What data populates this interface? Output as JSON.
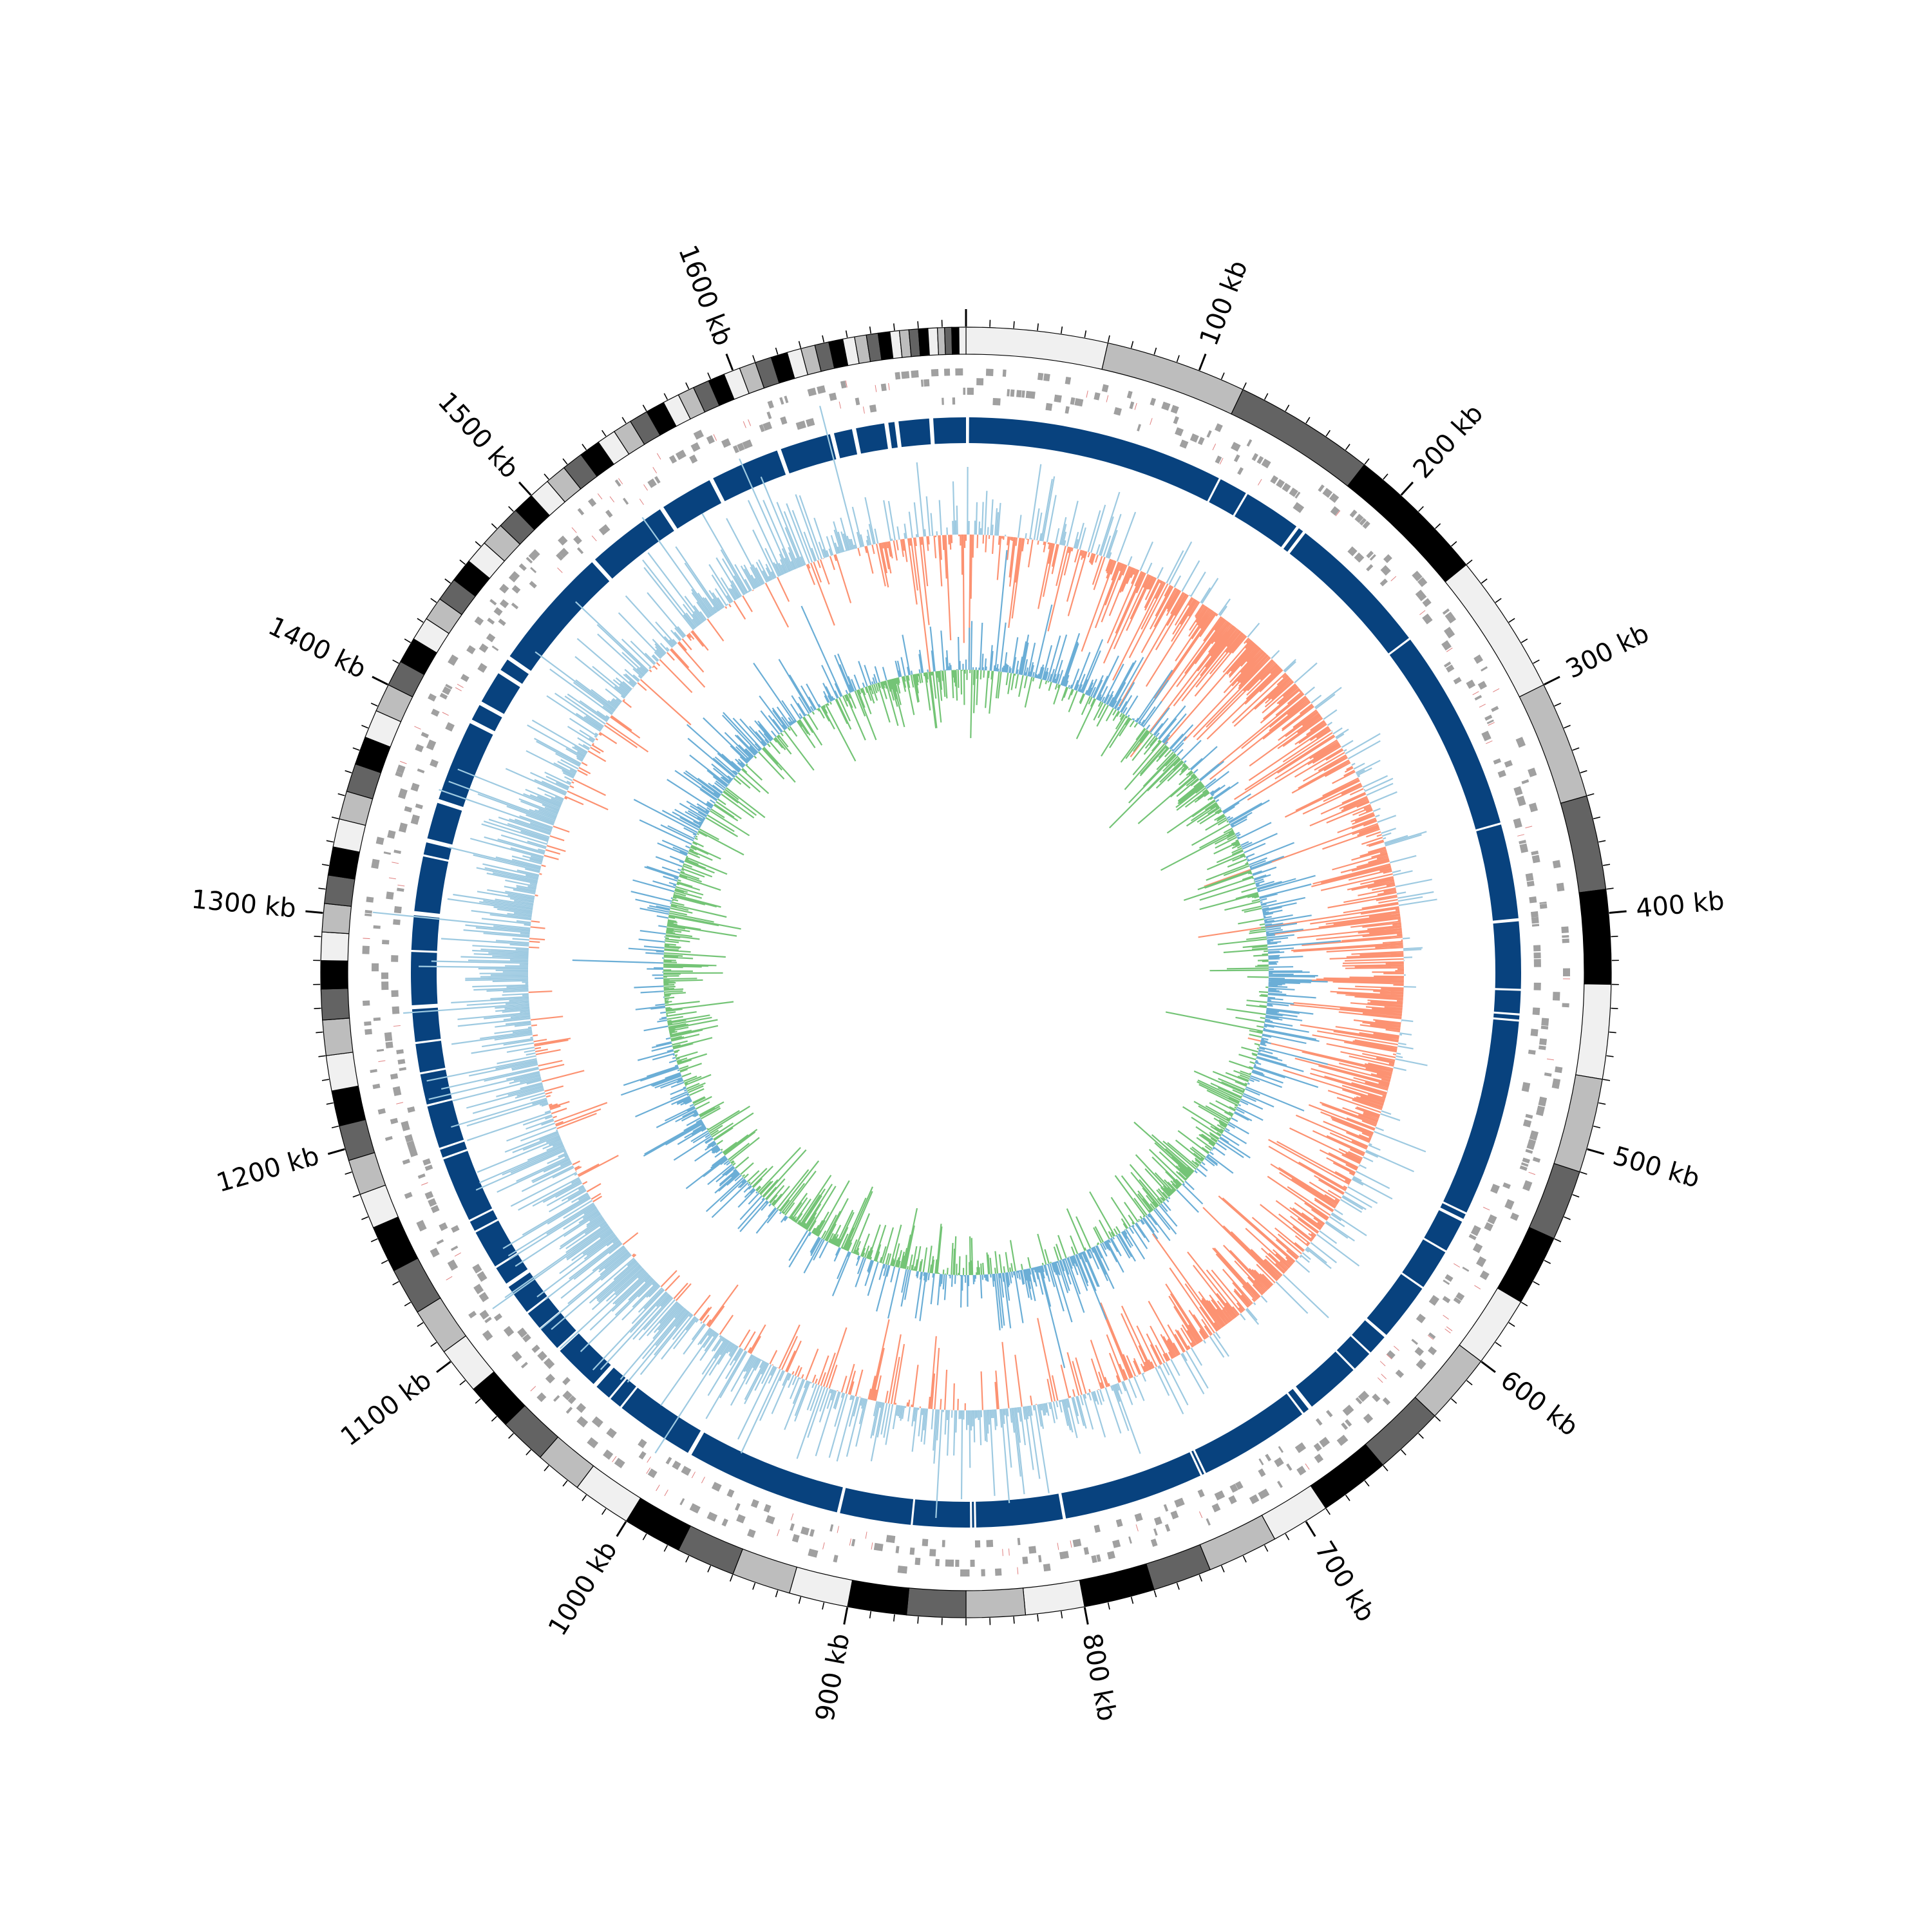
{
  "chart_data": {
    "type": "circos",
    "genome_length_kb": 1700,
    "tick_labels": [
      {
        "kb": 100,
        "label": "100 kb"
      },
      {
        "kb": 200,
        "label": "200 kb"
      },
      {
        "kb": 300,
        "label": "300 kb"
      },
      {
        "kb": 400,
        "label": "400 kb"
      },
      {
        "kb": 500,
        "label": "500 kb"
      },
      {
        "kb": 600,
        "label": "600 kb"
      },
      {
        "kb": 700,
        "label": "700 kb"
      },
      {
        "kb": 800,
        "label": "800 kb"
      },
      {
        "kb": 900,
        "label": "900 kb"
      },
      {
        "kb": 1000,
        "label": "1000 kb"
      },
      {
        "kb": 1100,
        "label": "1100 kb"
      },
      {
        "kb": 1200,
        "label": "1200 kb"
      },
      {
        "kb": 1300,
        "label": "1300 kb"
      },
      {
        "kb": 1400,
        "label": "1400 kb"
      },
      {
        "kb": 1500,
        "label": "1500 kb"
      },
      {
        "kb": 1600,
        "label": "1600 kb"
      }
    ],
    "minor_tick_every_kb": 10,
    "contig_blocks": [
      [
        0,
        60,
        "#f0f0f0"
      ],
      [
        60,
        120,
        "#bdbdbd"
      ],
      [
        120,
        180,
        "#636363"
      ],
      [
        180,
        240,
        "#000000"
      ],
      [
        240,
        300,
        "#f0f0f0"
      ],
      [
        300,
        350,
        "#bdbdbd"
      ],
      [
        350,
        390,
        "#636363"
      ],
      [
        390,
        430,
        "#000000"
      ],
      [
        430,
        470,
        "#f0f0f0"
      ],
      [
        470,
        510,
        "#bdbdbd"
      ],
      [
        510,
        540,
        "#636363"
      ],
      [
        540,
        570,
        "#000000"
      ],
      [
        570,
        600,
        "#f0f0f0"
      ],
      [
        600,
        630,
        "#bdbdbd"
      ],
      [
        630,
        660,
        "#636363"
      ],
      [
        660,
        690,
        "#000000"
      ],
      [
        690,
        715,
        "#f0f0f0"
      ],
      [
        715,
        745,
        "#bdbdbd"
      ],
      [
        745,
        770,
        "#636363"
      ],
      [
        770,
        800,
        "#000000"
      ],
      [
        800,
        825,
        "#f0f0f0"
      ],
      [
        825,
        850,
        "#bdbdbd"
      ],
      [
        850,
        875,
        "#636363"
      ],
      [
        875,
        900,
        "#000000"
      ],
      [
        900,
        925,
        "#f0f0f0"
      ],
      [
        925,
        950,
        "#bdbdbd"
      ],
      [
        950,
        975,
        "#636363"
      ],
      [
        975,
        1000,
        "#000000"
      ],
      [
        1000,
        1025,
        "#f0f0f0"
      ],
      [
        1025,
        1045,
        "#bdbdbd"
      ],
      [
        1045,
        1065,
        "#636363"
      ],
      [
        1065,
        1085,
        "#000000"
      ],
      [
        1085,
        1105,
        "#f0f0f0"
      ],
      [
        1105,
        1125,
        "#bdbdbd"
      ],
      [
        1125,
        1145,
        "#636363"
      ],
      [
        1145,
        1165,
        "#000000"
      ],
      [
        1165,
        1180,
        "#f0f0f0"
      ],
      [
        1180,
        1195,
        "#bdbdbd"
      ],
      [
        1195,
        1210,
        "#636363"
      ],
      [
        1210,
        1225,
        "#000000"
      ],
      [
        1225,
        1240,
        "#f0f0f0"
      ],
      [
        1240,
        1255,
        "#bdbdbd"
      ],
      [
        1255,
        1268,
        "#636363"
      ],
      [
        1268,
        1280,
        "#000000"
      ],
      [
        1280,
        1292,
        "#f0f0f0"
      ],
      [
        1292,
        1304,
        "#bdbdbd"
      ],
      [
        1304,
        1316,
        "#636363"
      ],
      [
        1316,
        1328,
        "#000000"
      ],
      [
        1328,
        1340,
        "#f0f0f0"
      ],
      [
        1340,
        1352,
        "#bdbdbd"
      ],
      [
        1352,
        1364,
        "#636363"
      ],
      [
        1364,
        1376,
        "#000000"
      ],
      [
        1376,
        1388,
        "#f0f0f0"
      ],
      [
        1388,
        1400,
        "#bdbdbd"
      ],
      [
        1400,
        1411,
        "#636363"
      ],
      [
        1411,
        1422,
        "#000000"
      ],
      [
        1422,
        1432,
        "#f0f0f0"
      ],
      [
        1432,
        1442,
        "#bdbdbd"
      ],
      [
        1442,
        1452,
        "#636363"
      ],
      [
        1452,
        1462,
        "#000000"
      ],
      [
        1462,
        1472,
        "#f0f0f0"
      ],
      [
        1472,
        1482,
        "#bdbdbd"
      ],
      [
        1482,
        1491,
        "#636363"
      ],
      [
        1491,
        1500,
        "#000000"
      ],
      [
        1500,
        1509,
        "#f0f0f0"
      ],
      [
        1509,
        1518,
        "#bdbdbd"
      ],
      [
        1518,
        1527,
        "#636363"
      ],
      [
        1527,
        1536,
        "#000000"
      ],
      [
        1536,
        1544,
        "#f0f0f0"
      ],
      [
        1544,
        1552,
        "#bdbdbd"
      ],
      [
        1552,
        1560,
        "#636363"
      ],
      [
        1560,
        1568,
        "#000000"
      ],
      [
        1568,
        1575,
        "#f0f0f0"
      ],
      [
        1575,
        1582,
        "#bdbdbd"
      ],
      [
        1582,
        1589,
        "#636363"
      ],
      [
        1589,
        1596,
        "#000000"
      ],
      [
        1596,
        1603,
        "#f0f0f0"
      ],
      [
        1603,
        1610,
        "#bdbdbd"
      ],
      [
        1610,
        1617,
        "#636363"
      ],
      [
        1617,
        1624,
        "#000000"
      ],
      [
        1624,
        1630,
        "#f0f0f0"
      ],
      [
        1630,
        1636,
        "#bdbdbd"
      ],
      [
        1636,
        1642,
        "#636363"
      ],
      [
        1642,
        1648,
        "#000000"
      ],
      [
        1648,
        1653,
        "#f0f0f0"
      ],
      [
        1653,
        1658,
        "#bdbdbd"
      ],
      [
        1658,
        1663,
        "#636363"
      ],
      [
        1663,
        1668,
        "#000000"
      ],
      [
        1668,
        1672,
        "#f0f0f0"
      ],
      [
        1672,
        1676,
        "#bdbdbd"
      ],
      [
        1676,
        1680,
        "#636363"
      ],
      [
        1680,
        1684,
        "#000000"
      ],
      [
        1684,
        1688,
        "#f0f0f0"
      ],
      [
        1688,
        1691,
        "#bdbdbd"
      ],
      [
        1691,
        1694,
        "#636363"
      ],
      [
        1694,
        1697,
        "#000000"
      ],
      [
        1697,
        1700,
        "#f0f0f0"
      ]
    ],
    "dark_segments_kb": [
      [
        1.5,
        128
      ],
      [
        129,
        143
      ],
      [
        144,
        172.5
      ],
      [
        174,
        176.5
      ],
      [
        178,
        250
      ],
      [
        251,
        351
      ],
      [
        352,
        398.5
      ],
      [
        400,
        433
      ],
      [
        434,
        445
      ],
      [
        446,
        448
      ],
      [
        449,
        546
      ],
      [
        547,
        549.5
      ],
      [
        551,
        567
      ],
      [
        568,
        588
      ],
      [
        589,
        617.5
      ],
      [
        619,
        629
      ],
      [
        630,
        640
      ],
      [
        641,
        668
      ],
      [
        670,
        673
      ],
      [
        674,
        729
      ],
      [
        730,
        731
      ],
      [
        732,
        801
      ],
      [
        802.5,
        845
      ],
      [
        846,
        847
      ],
      [
        848,
        876
      ],
      [
        877,
        912
      ],
      [
        913.5,
        990
      ],
      [
        992,
        1031
      ],
      [
        1032,
        1038
      ],
      [
        1039,
        1047
      ],
      [
        1049,
        1072
      ],
      [
        1074,
        1086
      ],
      [
        1087,
        1096
      ],
      [
        1097,
        1112
      ],
      [
        1114,
        1123
      ],
      [
        1124,
        1143
      ],
      [
        1144,
        1149
      ],
      [
        1150,
        1182
      ],
      [
        1183,
        1187
      ],
      [
        1188,
        1209
      ],
      [
        1210,
        1225
      ],
      [
        1226,
        1240
      ],
      [
        1241,
        1257
      ],
      [
        1259,
        1285
      ],
      [
        1286,
        1303
      ],
      [
        1305,
        1332
      ],
      [
        1333,
        1339
      ],
      [
        1341,
        1359
      ],
      [
        1361,
        1401
      ],
      [
        1403,
        1411
      ],
      [
        1413,
        1429
      ],
      [
        1431,
        1437
      ],
      [
        1439,
        1500
      ],
      [
        1502,
        1542
      ],
      [
        1544,
        1570
      ],
      [
        1572,
        1606
      ],
      [
        1608,
        1633
      ],
      [
        1635,
        1644
      ],
      [
        1646,
        1660
      ],
      [
        1662,
        1665
      ],
      [
        1667,
        1682
      ],
      [
        1684,
        1700
      ]
    ],
    "series": [
      {
        "colors": {
          "positive": "#9ecae1",
          "negative": "#fc9272"
        }
      },
      {
        "colors": {
          "positive": "#6baed6",
          "negative": "#74c476"
        }
      }
    ]
  }
}
